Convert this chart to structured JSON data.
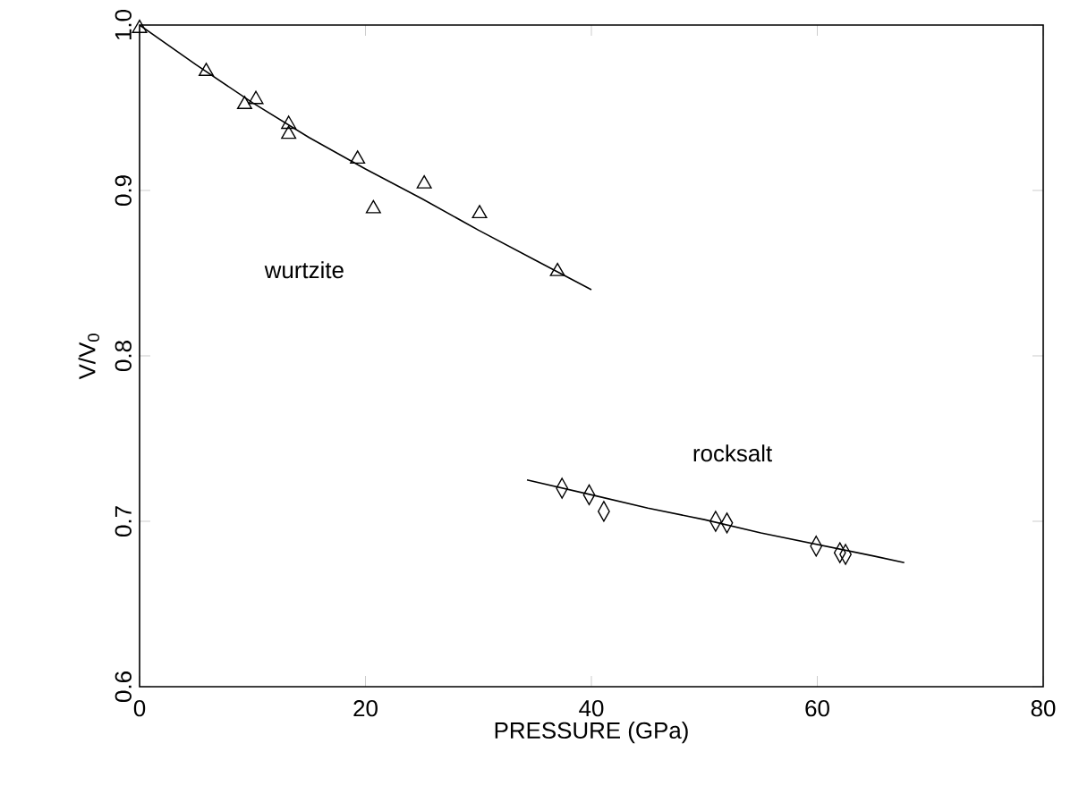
{
  "chart_data": {
    "type": "scatter",
    "xlabel": "PRESSURE (GPa)",
    "ylabel": "V/V$_{0}$",
    "xlim": [
      0,
      80
    ],
    "ylim": [
      0.6,
      1.0
    ],
    "xticks": [
      0,
      20,
      40,
      60,
      80
    ],
    "yticks": [
      0.6,
      0.7,
      0.8,
      0.9,
      {
        "value": 1.0,
        "label": "1.0"
      }
    ],
    "series": [
      {
        "marker": "triangle",
        "color": "#000000",
        "x": [
          0,
          5.9,
          9.3,
          10.3,
          13.2,
          13.2,
          19.3,
          20.7,
          25.2,
          30.1,
          37.0
        ],
        "values": [
          0.998,
          0.972,
          0.952,
          0.955,
          0.94,
          0.934,
          0.919,
          0.889,
          0.904,
          0.886,
          0.851
        ]
      },
      {
        "type": "line",
        "marker": "none",
        "line_style": "solid",
        "color": "#000000",
        "x": [
          0,
          5,
          10,
          15,
          20,
          25,
          30,
          35,
          40
        ],
        "values": [
          1.0,
          0.976,
          0.953,
          0.932,
          0.913,
          0.895,
          0.876,
          0.858,
          0.84
        ]
      },
      {
        "marker": "diamond",
        "color": "#000000",
        "x": [
          37.4,
          39.8,
          41.1,
          51.0,
          52.0,
          59.9,
          62.0,
          62.5
        ],
        "values": [
          0.72,
          0.716,
          0.706,
          0.7,
          0.699,
          0.685,
          0.681,
          0.68
        ]
      },
      {
        "type": "line",
        "marker": "none",
        "line_style": "solid",
        "color": "#000000",
        "x": [
          34.3,
          40,
          45,
          50,
          55,
          60,
          65,
          67.7
        ],
        "values": [
          0.725,
          0.716,
          0.708,
          0.701,
          0.693,
          0.686,
          0.679,
          0.675
        ]
      }
    ],
    "annotations": [
      "wurtzite",
      "rocksalt"
    ]
  }
}
